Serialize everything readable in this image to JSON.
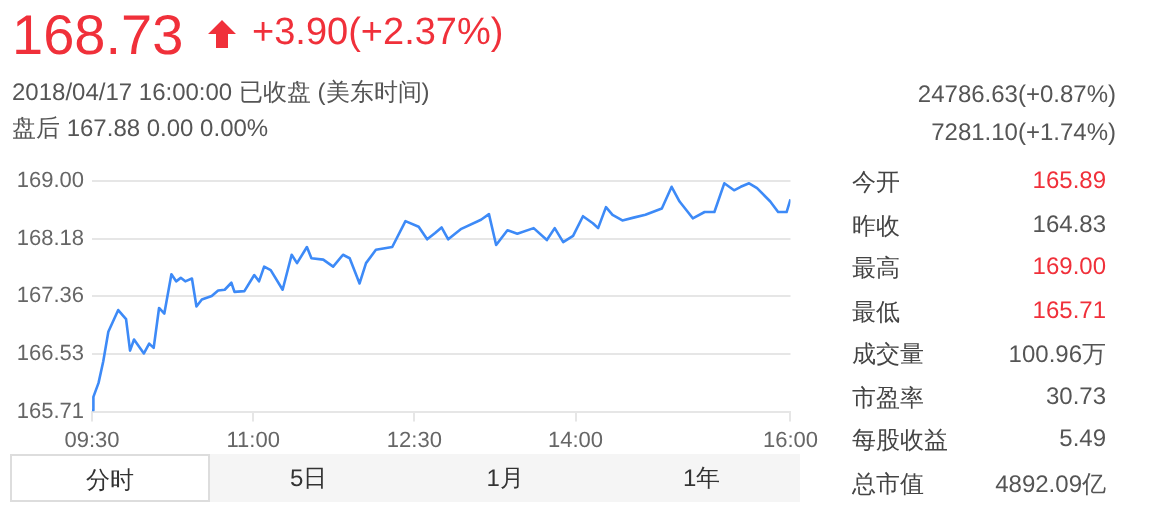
{
  "chart_data": {
    "type": "line",
    "title": "168.73",
    "annotations": [
      "+3.90(+2.37%)",
      "2018/04/17 16:00:00   已收盘 (美东时间)",
      "盘后   167.88   0.00   0.00%",
      "24786.63(+0.87%)",
      "7281.10(+1.74%)",
      "今开",
      "165.89",
      "昨收",
      "164.83",
      "最高",
      "169.00",
      "最低",
      "165.71",
      "成交量",
      "100.96万",
      "市盈率",
      "30.73",
      "每股收益",
      "5.49",
      "总市值",
      "4892.09亿",
      "分时",
      "5日",
      "1月",
      "1年"
    ],
    "series": [
      {
        "color": "#3d8af7",
        "x": [
          9.5,
          9.513,
          9.561,
          9.605,
          9.652,
          9.744,
          9.817,
          9.854,
          9.891,
          9.983,
          10.032,
          10.074,
          10.124,
          10.173,
          10.239,
          10.283,
          10.326,
          10.368,
          10.43,
          10.472,
          10.522,
          10.614,
          10.674,
          10.735,
          10.797,
          10.826,
          10.918,
          11.01,
          11.054,
          11.102,
          11.163,
          11.274,
          11.358,
          11.408,
          11.5,
          11.542,
          11.652,
          11.744,
          11.836,
          11.898,
          11.99,
          12.05,
          12.142,
          12.294,
          12.417,
          12.54,
          12.619,
          12.693,
          12.753,
          12.815,
          12.937,
          13.12,
          13.194,
          13.261,
          13.366,
          13.458,
          13.61,
          13.733,
          13.806,
          13.885,
          13.977,
          14.069,
          14.161,
          14.21,
          14.283,
          14.344,
          14.436,
          14.54,
          14.65,
          14.803,
          14.894,
          14.968,
          15.091,
          15.201,
          15.292,
          15.384,
          15.475,
          15.537,
          15.615,
          15.689,
          15.812,
          15.885,
          15.964,
          16.0
        ],
        "values": [
          165.73,
          165.92,
          166.12,
          166.43,
          166.85,
          167.16,
          167.03,
          166.58,
          166.74,
          166.54,
          166.68,
          166.62,
          167.19,
          167.11,
          167.67,
          167.57,
          167.62,
          167.57,
          167.61,
          167.21,
          167.31,
          167.36,
          167.44,
          167.45,
          167.55,
          167.42,
          167.43,
          167.66,
          167.57,
          167.78,
          167.73,
          167.45,
          167.95,
          167.83,
          168.06,
          167.9,
          167.88,
          167.78,
          167.95,
          167.9,
          167.54,
          167.83,
          168.02,
          168.06,
          168.43,
          168.35,
          168.17,
          168.26,
          168.34,
          168.17,
          168.32,
          168.45,
          168.53,
          168.09,
          168.3,
          168.25,
          168.33,
          168.16,
          168.33,
          168.13,
          168.22,
          168.5,
          168.4,
          168.33,
          168.63,
          168.52,
          168.44,
          168.48,
          168.52,
          168.61,
          168.92,
          168.71,
          168.47,
          168.56,
          168.56,
          168.97,
          168.87,
          168.92,
          168.97,
          168.9,
          168.71,
          168.56,
          168.56,
          168.74
        ]
      }
    ],
    "xlim": [
      9.5,
      16.0
    ],
    "xticks": [
      {
        "value": 9.5,
        "label": "09:30"
      },
      {
        "value": 11,
        "label": "11:00"
      },
      {
        "value": 12.5,
        "label": "12:30"
      },
      {
        "value": 14,
        "label": "14:00"
      },
      {
        "value": 16,
        "label": "16:00"
      }
    ],
    "ylim": [
      165.71,
      169.0
    ],
    "yticks": [
      {
        "value": 165.71,
        "label": "165.71"
      },
      {
        "value": 166.53,
        "label": "166.53"
      },
      {
        "value": 167.36,
        "label": "167.36"
      },
      {
        "value": 168.18,
        "label": "168.18"
      },
      {
        "value": 169.0,
        "label": "169.00"
      }
    ],
    "grid": "y",
    "legend": false,
    "marker": "none",
    "line_style": "solid"
  }
}
